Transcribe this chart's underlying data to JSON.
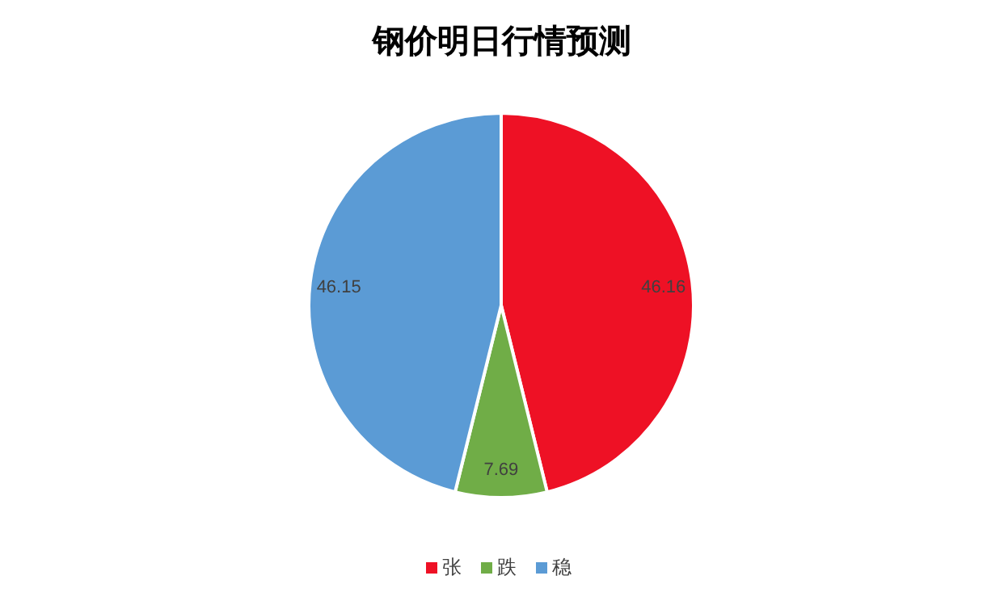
{
  "chart_data": {
    "type": "pie",
    "title": "钢价明日行情预测",
    "categories": [
      "张",
      "跌",
      "稳"
    ],
    "values": [
      46.16,
      7.69,
      46.15
    ],
    "colors": [
      "#ee1125",
      "#70ad47",
      "#5b9bd5"
    ],
    "data_labels": true,
    "legend": "bottom"
  }
}
